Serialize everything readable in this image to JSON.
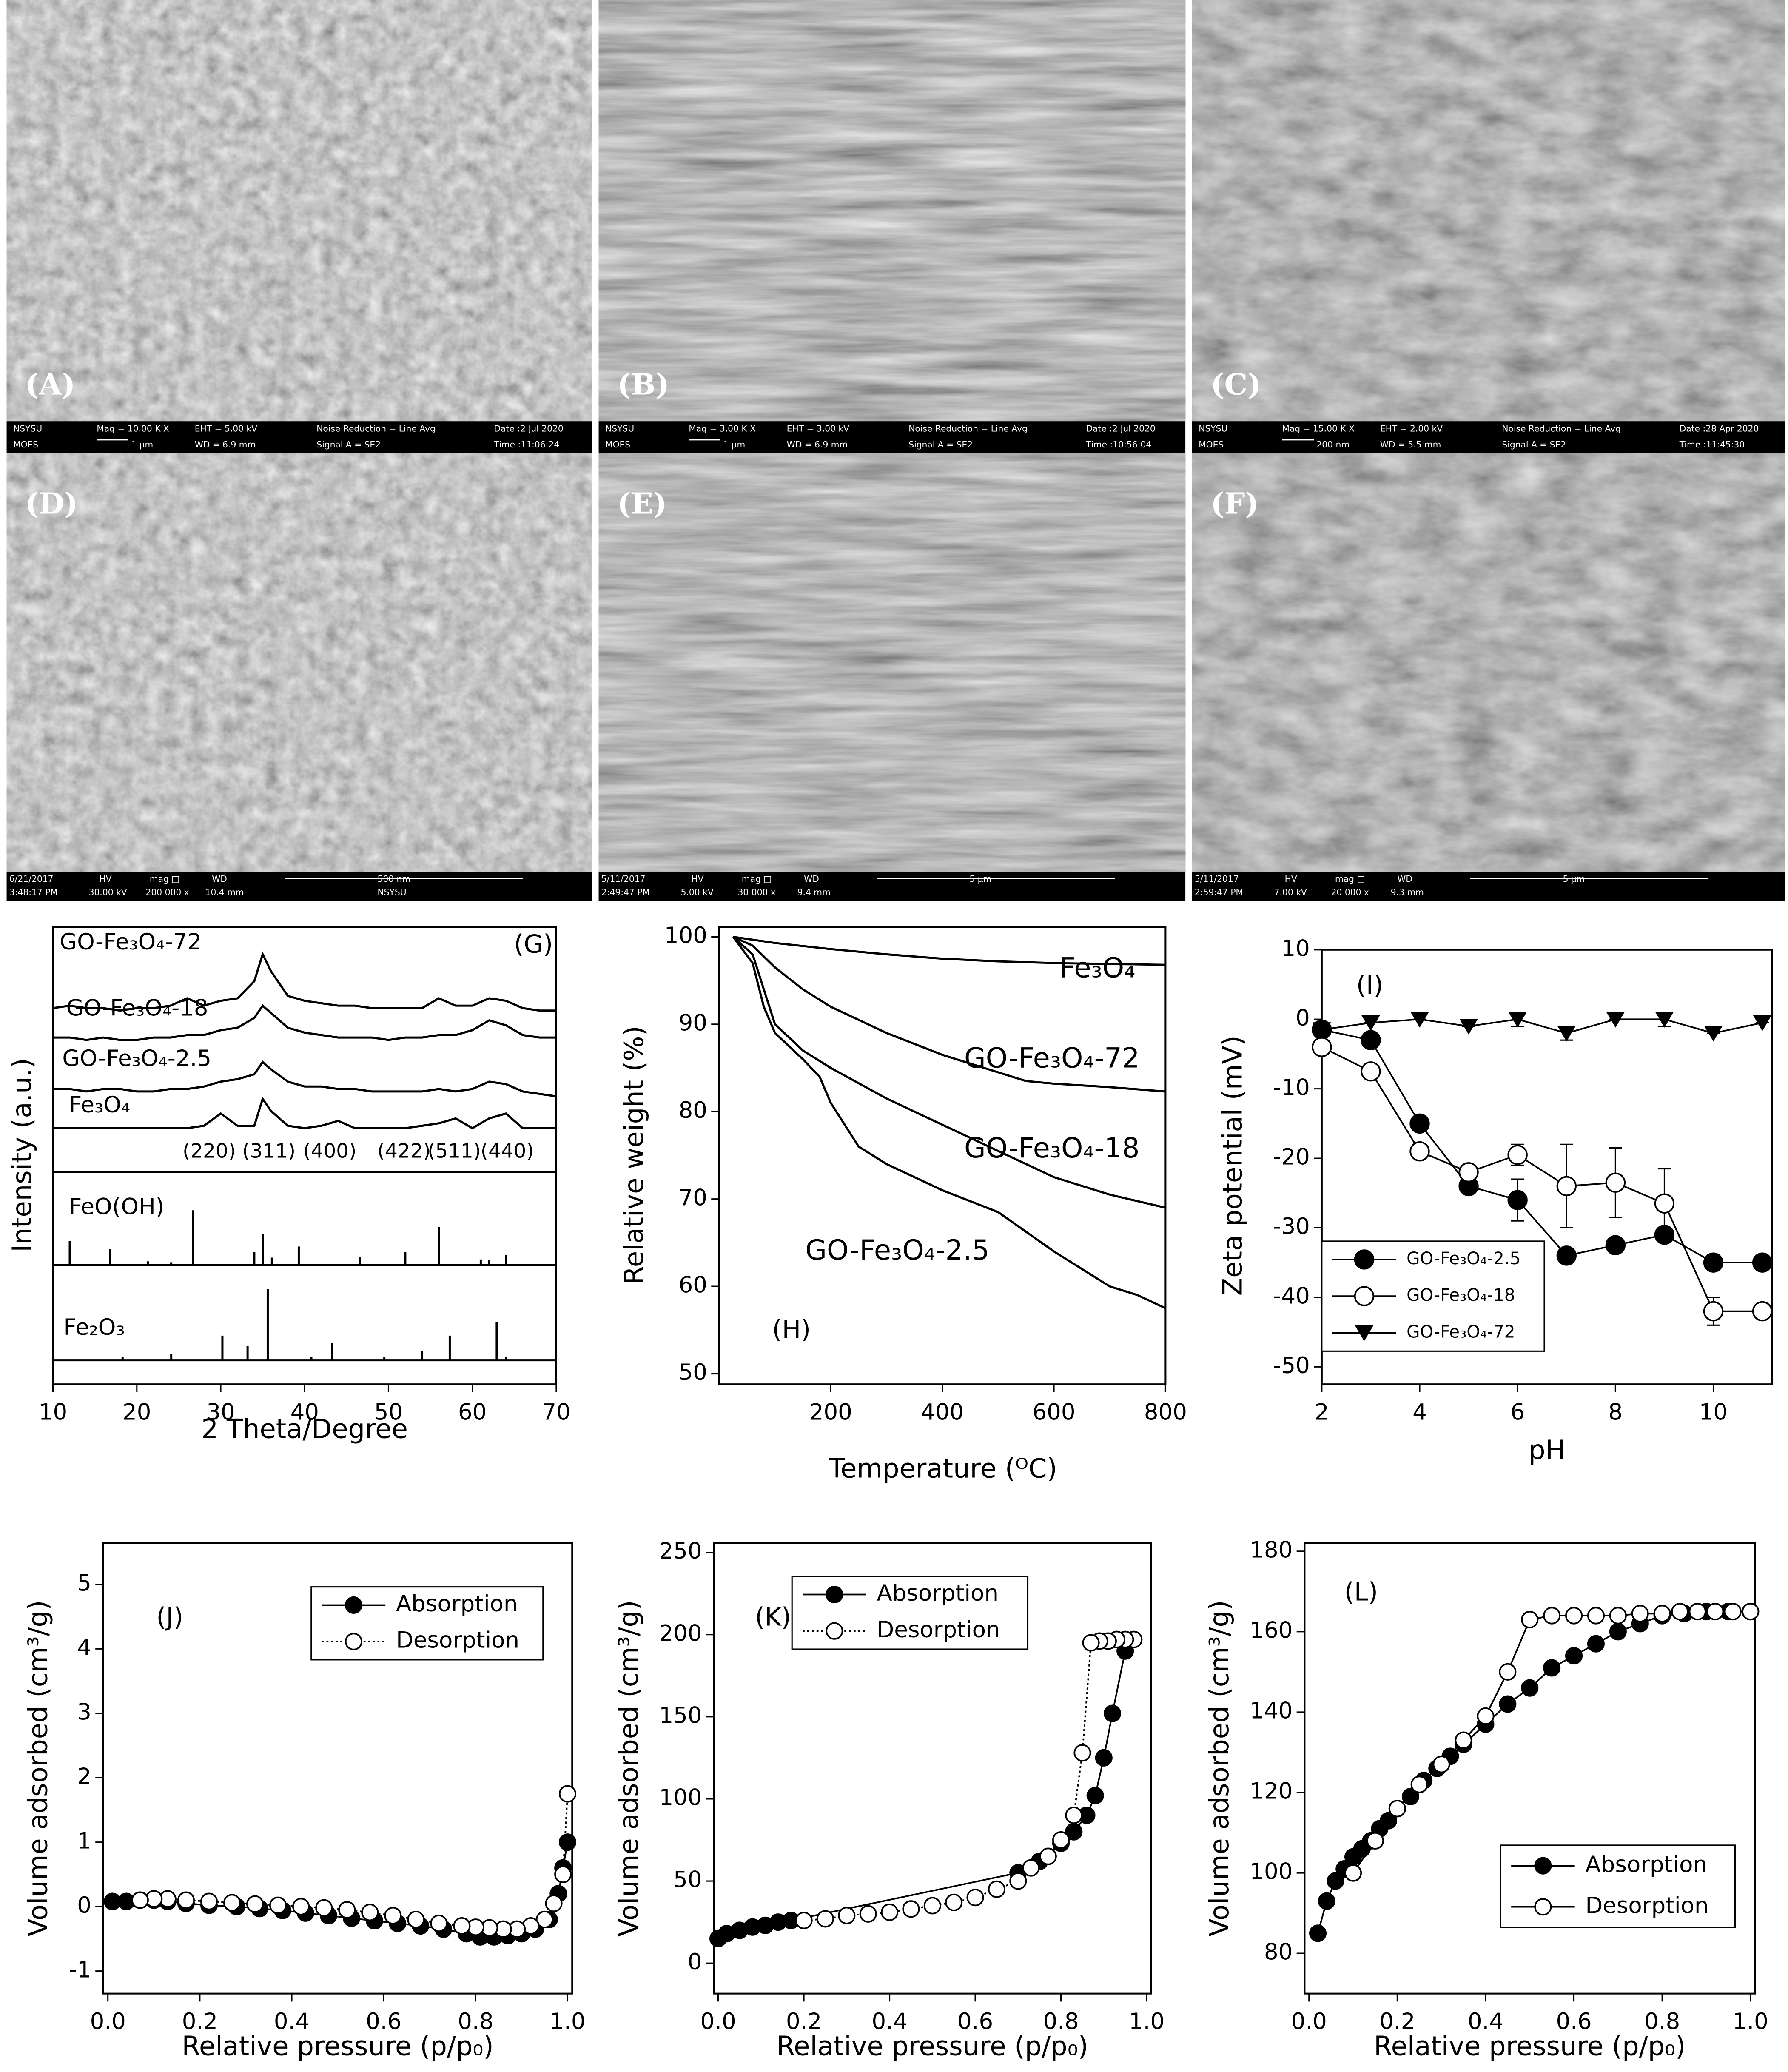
{
  "micrographs": [
    {
      "label": "(A)",
      "info": [
        "NSYSU",
        "MOES",
        "Mag = 10.00 K X",
        "1 µm",
        "EHT = 5.00 kV",
        "WD = 6.9 mm",
        "Noise Reduction = Line Avg",
        "Signal A = SE2",
        "Date :2 Jul 2020",
        "Time :11:06:24"
      ]
    },
    {
      "label": "(B)",
      "info": [
        "NSYSU",
        "MOES",
        "Mag = 3.00 K X",
        "1 µm",
        "EHT = 3.00 kV",
        "WD = 6.9 mm",
        "Noise Reduction = Line Avg",
        "Signal A = SE2",
        "Date :2 Jul 2020",
        "Time :10:56:04"
      ]
    },
    {
      "label": "(C)",
      "info": [
        "NSYSU",
        "MOES",
        "Mag = 15.00 K X",
        "200 nm",
        "EHT = 2.00 kV",
        "WD = 5.5 mm",
        "Noise Reduction = Line Avg",
        "Signal A = SE2",
        "Date :28 Apr 2020",
        "Time :11:45:30"
      ]
    },
    {
      "label": "(D)",
      "info": [
        "6/21/2017",
        "3:48:17 PM",
        "HV",
        "30.00 kV",
        "mag □",
        "200 000 x",
        "WD",
        "10.4 mm",
        "500 nm",
        "NSYSU"
      ]
    },
    {
      "label": "(E)",
      "info": [
        "5/11/2017",
        "2:49:47 PM",
        "HV",
        "5.00 kV",
        "mag □",
        "30 000 x",
        "WD",
        "9.4 mm",
        "5 µm"
      ]
    },
    {
      "label": "(F)",
      "info": [
        "5/11/2017",
        "2:59:47 PM",
        "HV",
        "7.00 kV",
        "mag □",
        "20 000 x",
        "WD",
        "9.3 mm",
        "5 µm"
      ]
    }
  ],
  "chart_data": [
    {
      "type": "line",
      "title": "(G)",
      "ylabel": "Intensity (a.u.)",
      "color": "#000000",
      "xlim": [
        10,
        70
      ],
      "ylim": [
        0,
        100
      ],
      "x": [
        10,
        12,
        14,
        16,
        18,
        20,
        22,
        24,
        26,
        28,
        30,
        32,
        34,
        35,
        36,
        38,
        40,
        42,
        44,
        46,
        48,
        50,
        52,
        54,
        56,
        58,
        60,
        62,
        64,
        66,
        68,
        70
      ],
      "series": [
        {
          "name": "GO-Fe₃O₄-72",
          "values": [
            67,
            68,
            67,
            67,
            66,
            67,
            67,
            68,
            71,
            68,
            70,
            71,
            78,
            89,
            82,
            72,
            70,
            69,
            68,
            68,
            67,
            67,
            67,
            67,
            71,
            68,
            68,
            71,
            70,
            67,
            66,
            66
          ]
        },
        {
          "name": "GO-Fe₃O₄-18",
          "values": [
            55,
            55,
            54,
            55,
            54,
            54,
            55,
            55,
            56,
            56,
            58,
            59,
            63,
            68,
            65,
            59,
            57,
            56,
            55,
            55,
            55,
            54,
            55,
            55,
            56,
            56,
            58,
            62,
            60,
            56,
            55,
            55
          ]
        },
        {
          "name": "GO-Fe₃O₄-2.5",
          "values": [
            34,
            34,
            33,
            34,
            34,
            33,
            33,
            34,
            34,
            35,
            37,
            38,
            40,
            45,
            42,
            37,
            35,
            35,
            34,
            34,
            33,
            33,
            33,
            33,
            34,
            33,
            34,
            37,
            36,
            33,
            32,
            31
          ]
        },
        {
          "name": "Fe₃O₄",
          "values": [
            18,
            18,
            18,
            18,
            18,
            18,
            18,
            18,
            18,
            19,
            24,
            19,
            19,
            30,
            25,
            19,
            18,
            19,
            21,
            18,
            18,
            18,
            18,
            19,
            20,
            22,
            18,
            22,
            24,
            18,
            18,
            18
          ]
        }
      ],
      "peak_labels": [
        "(220)",
        "(311)",
        "(400)",
        "(422)",
        "(511)",
        "(440)"
      ]
    },
    {
      "type": "stick",
      "color": "#000000",
      "xlim": [
        10,
        70
      ],
      "ylim": [
        0,
        100
      ],
      "series": [
        {
          "name": "FeO(OH)",
          "x": [
            12,
            16.8,
            21.3,
            24.1,
            26.7,
            34,
            35,
            36.1,
            39.3,
            46.6,
            52,
            56,
            61,
            62,
            64
          ],
          "values": [
            26,
            17,
            4,
            3,
            59,
            14,
            33,
            8,
            20,
            9,
            14,
            41,
            6,
            5,
            11
          ]
        }
      ]
    },
    {
      "type": "stick",
      "color": "#000000",
      "xlabel": "2 Theta/Degree",
      "xlim": [
        10,
        70
      ],
      "ylim": [
        -25,
        100
      ],
      "xticks": [
        10,
        20,
        30,
        40,
        50,
        60,
        70
      ],
      "series": [
        {
          "name": "Fe₂O₃",
          "x": [
            18.3,
            24.1,
            30.2,
            33.2,
            35.6,
            40.8,
            43.3,
            49.5,
            54,
            57.3,
            62.9,
            64
          ],
          "values": [
            4,
            7,
            26,
            15,
            75,
            4,
            18,
            4,
            10,
            26,
            40,
            4
          ]
        }
      ]
    },
    {
      "type": "line",
      "title": "(H)",
      "xlabel": "Temperature (ᴼC)",
      "ylabel": "Relative weight (%)",
      "color": "#000000",
      "xlim": [
        0,
        800
      ],
      "ylim": [
        48.8,
        101.1
      ],
      "xticks": [
        200,
        400,
        600,
        800
      ],
      "yticks": [
        50,
        60,
        70,
        80,
        90,
        100
      ],
      "series": [
        {
          "name": "Fe₃O₄",
          "x": [
            25,
            100,
            200,
            300,
            400,
            500,
            600,
            700,
            800
          ],
          "values": [
            100,
            99.3,
            98.6,
            98,
            97.5,
            97.2,
            97,
            96.9,
            96.8
          ]
        },
        {
          "name": "GO-Fe₃O₄-72",
          "x": [
            25,
            60,
            100,
            150,
            200,
            300,
            400,
            500,
            550,
            600,
            700,
            800
          ],
          "values": [
            100,
            99,
            96.5,
            94,
            92,
            89,
            86.5,
            84.5,
            83.5,
            83.2,
            82.8,
            82.3
          ]
        },
        {
          "name": "GO-Fe₃O₄-18",
          "x": [
            25,
            60,
            80,
            100,
            150,
            200,
            300,
            400,
            500,
            600,
            700,
            800
          ],
          "values": [
            100,
            98,
            94,
            90,
            87,
            85,
            81.5,
            78.5,
            75.5,
            72.5,
            70.5,
            69
          ]
        },
        {
          "name": "GO-Fe₃O₄-2.5",
          "x": [
            25,
            60,
            80,
            100,
            150,
            180,
            200,
            250,
            300,
            400,
            500,
            600,
            700,
            750,
            800
          ],
          "values": [
            100,
            97,
            92,
            89,
            86,
            84,
            81,
            76,
            74,
            71,
            68.5,
            64,
            60,
            59,
            57.5
          ]
        }
      ]
    },
    {
      "type": "line",
      "title": "(I)",
      "xlabel": "pH",
      "ylabel": "Zeta potential (mV)",
      "color": "#000000",
      "xlim": [
        2,
        11.2
      ],
      "ylim": [
        -52.5,
        10
      ],
      "xticks": [
        2,
        4,
        6,
        8,
        10
      ],
      "yticks": [
        -50,
        -40,
        -30,
        -20,
        -10,
        0,
        10
      ],
      "legend": "lower left",
      "x": [
        2,
        3,
        4,
        5,
        6,
        7,
        8,
        9,
        10,
        11
      ],
      "series": [
        {
          "name": "GO-Fe₃O₄-2.5",
          "marker": "filled-circle",
          "values": [
            -1.5,
            -3,
            -15,
            -24,
            -26,
            -34,
            -32.5,
            -31,
            -35,
            -35
          ],
          "errors": [
            0,
            0,
            1,
            0,
            3,
            0,
            0,
            0,
            0,
            0
          ]
        },
        {
          "name": "GO-Fe₃O₄-18",
          "marker": "open-circle",
          "values": [
            -4,
            -7.5,
            -19,
            -22,
            -19.5,
            -24,
            -23.5,
            -26.5,
            -42,
            -42
          ],
          "errors": [
            0,
            0,
            0,
            0,
            1.5,
            6,
            5,
            5,
            2,
            0
          ]
        },
        {
          "name": "GO-Fe₃O₄-72",
          "marker": "triangle-down",
          "values": [
            -1.5,
            -0.5,
            0,
            -1,
            0,
            -2,
            0,
            0,
            -2,
            -0.5
          ],
          "errors": [
            0,
            0,
            0,
            0,
            1,
            1,
            0,
            1,
            0,
            0
          ]
        }
      ]
    },
    {
      "type": "line",
      "title": "(J)",
      "xlabel": "Relative pressure (p/p₀)",
      "ylabel": "Volume adsorbed (cm³/g)",
      "color": "#000000",
      "xlim": [
        -0.01,
        1.01
      ],
      "ylim": [
        -1.35,
        5.64
      ],
      "xticks": [
        {
          "value": 0,
          "label": "0.0"
        },
        0.2,
        0.4,
        0.6,
        0.8,
        {
          "value": 1,
          "label": "1.0"
        }
      ],
      "yticks": [
        -1,
        0,
        1,
        2,
        3,
        4,
        5
      ],
      "legend": "upper right",
      "series": [
        {
          "name": "Absorption",
          "marker": "filled-circle",
          "line_style": "solid",
          "x": [
            0.01,
            0.04,
            0.07,
            0.1,
            0.13,
            0.17,
            0.22,
            0.28,
            0.33,
            0.38,
            0.43,
            0.48,
            0.53,
            0.58,
            0.63,
            0.68,
            0.73,
            0.78,
            0.81,
            0.84,
            0.87,
            0.9,
            0.93,
            0.96,
            0.98,
            0.99,
            1.0
          ],
          "values": [
            0.08,
            0.08,
            0.1,
            0.1,
            0.08,
            0.05,
            0.02,
            0,
            -0.03,
            -0.06,
            -0.1,
            -0.14,
            -0.18,
            -0.22,
            -0.26,
            -0.3,
            -0.35,
            -0.42,
            -0.47,
            -0.47,
            -0.45,
            -0.42,
            -0.35,
            -0.2,
            0.2,
            0.6,
            1.0
          ]
        },
        {
          "name": "Desorption",
          "marker": "open-circle",
          "line_style": "dotted",
          "x": [
            1.0,
            0.99,
            0.97,
            0.95,
            0.92,
            0.89,
            0.86,
            0.83,
            0.8,
            0.77,
            0.72,
            0.67,
            0.62,
            0.57,
            0.52,
            0.47,
            0.42,
            0.37,
            0.32,
            0.27,
            0.22,
            0.17,
            0.13,
            0.1,
            0.07
          ],
          "values": [
            1.75,
            0.5,
            0.05,
            -0.2,
            -0.3,
            -0.35,
            -0.35,
            -0.33,
            -0.32,
            -0.3,
            -0.26,
            -0.2,
            -0.14,
            -0.09,
            -0.05,
            -0.02,
            0,
            0.02,
            0.04,
            0.06,
            0.08,
            0.1,
            0.12,
            0.12,
            0.1
          ]
        }
      ]
    },
    {
      "type": "line",
      "title": "(K)",
      "xlabel": "Relative pressure (p/p₀)",
      "ylabel": "Volume adsorbed (cm³/g)",
      "color": "#000000",
      "xlim": [
        -0.01,
        1.01
      ],
      "ylim": [
        -18.5,
        255.6
      ],
      "xticks": [
        {
          "value": 0,
          "label": "0.0"
        },
        0.2,
        0.4,
        0.6,
        0.8,
        {
          "value": 1,
          "label": "1.0"
        }
      ],
      "yticks": [
        0,
        50,
        100,
        150,
        200,
        250
      ],
      "legend": "upper left",
      "series": [
        {
          "name": "Absorption",
          "marker": "filled-circle",
          "line_style": "solid",
          "x": [
            0.0,
            0.02,
            0.05,
            0.08,
            0.11,
            0.14,
            0.17,
            0.7,
            0.75,
            0.8,
            0.83,
            0.86,
            0.88,
            0.9,
            0.92,
            0.95
          ],
          "values": [
            15,
            18,
            20,
            22,
            23,
            25,
            26,
            55,
            62,
            73,
            80,
            90,
            102,
            125,
            152,
            190
          ]
        },
        {
          "name": "Desorption",
          "marker": "open-circle",
          "line_style": "dotted",
          "x": [
            0.97,
            0.95,
            0.93,
            0.91,
            0.89,
            0.87,
            0.85,
            0.83,
            0.8,
            0.77,
            0.73,
            0.7,
            0.65,
            0.6,
            0.55,
            0.5,
            0.45,
            0.4,
            0.35,
            0.3,
            0.25,
            0.2
          ],
          "values": [
            197,
            197,
            197,
            196,
            196,
            195,
            128,
            90,
            75,
            65,
            58,
            50,
            45,
            40,
            37,
            35,
            33,
            31,
            30,
            29,
            27,
            26
          ]
        }
      ]
    },
    {
      "type": "line",
      "title": "(L)",
      "xlabel": "Relative pressure (p/p₀)",
      "ylabel": "Volume adsorbed (cm³/g)",
      "color": "#000000",
      "xlim": [
        -0.01,
        1.01
      ],
      "ylim": [
        70,
        182
      ],
      "xticks": [
        {
          "value": 0,
          "label": "0.0"
        },
        0.2,
        0.4,
        0.6,
        0.8,
        {
          "value": 1,
          "label": "1.0"
        }
      ],
      "yticks": [
        80,
        100,
        120,
        140,
        160,
        180
      ],
      "legend": "lower right",
      "series": [
        {
          "name": "Absorption",
          "marker": "filled-circle",
          "line_style": "solid",
          "x": [
            0.02,
            0.04,
            0.06,
            0.08,
            0.1,
            0.12,
            0.14,
            0.16,
            0.18,
            0.2,
            0.23,
            0.26,
            0.29,
            0.32,
            0.35,
            0.4,
            0.45,
            0.5,
            0.55,
            0.6,
            0.65,
            0.7,
            0.75,
            0.8,
            0.85,
            0.9,
            0.95,
            1.0
          ],
          "values": [
            85,
            93,
            98,
            101,
            104,
            106,
            108,
            111,
            113,
            116,
            119,
            123,
            126,
            129,
            132,
            137,
            142,
            146,
            151,
            154,
            157,
            160,
            162,
            164,
            164.5,
            165,
            165,
            165
          ]
        },
        {
          "name": "Desorption",
          "marker": "open-circle",
          "line_style": "solid",
          "x": [
            1.0,
            0.96,
            0.92,
            0.88,
            0.84,
            0.8,
            0.75,
            0.7,
            0.65,
            0.6,
            0.55,
            0.5,
            0.45,
            0.4,
            0.35,
            0.3,
            0.25,
            0.2,
            0.15,
            0.1
          ],
          "values": [
            165,
            165,
            165,
            165,
            165,
            164.5,
            164.5,
            164,
            164,
            164,
            164,
            163,
            150,
            139,
            133,
            127,
            122,
            116,
            108,
            100
          ]
        }
      ]
    }
  ]
}
